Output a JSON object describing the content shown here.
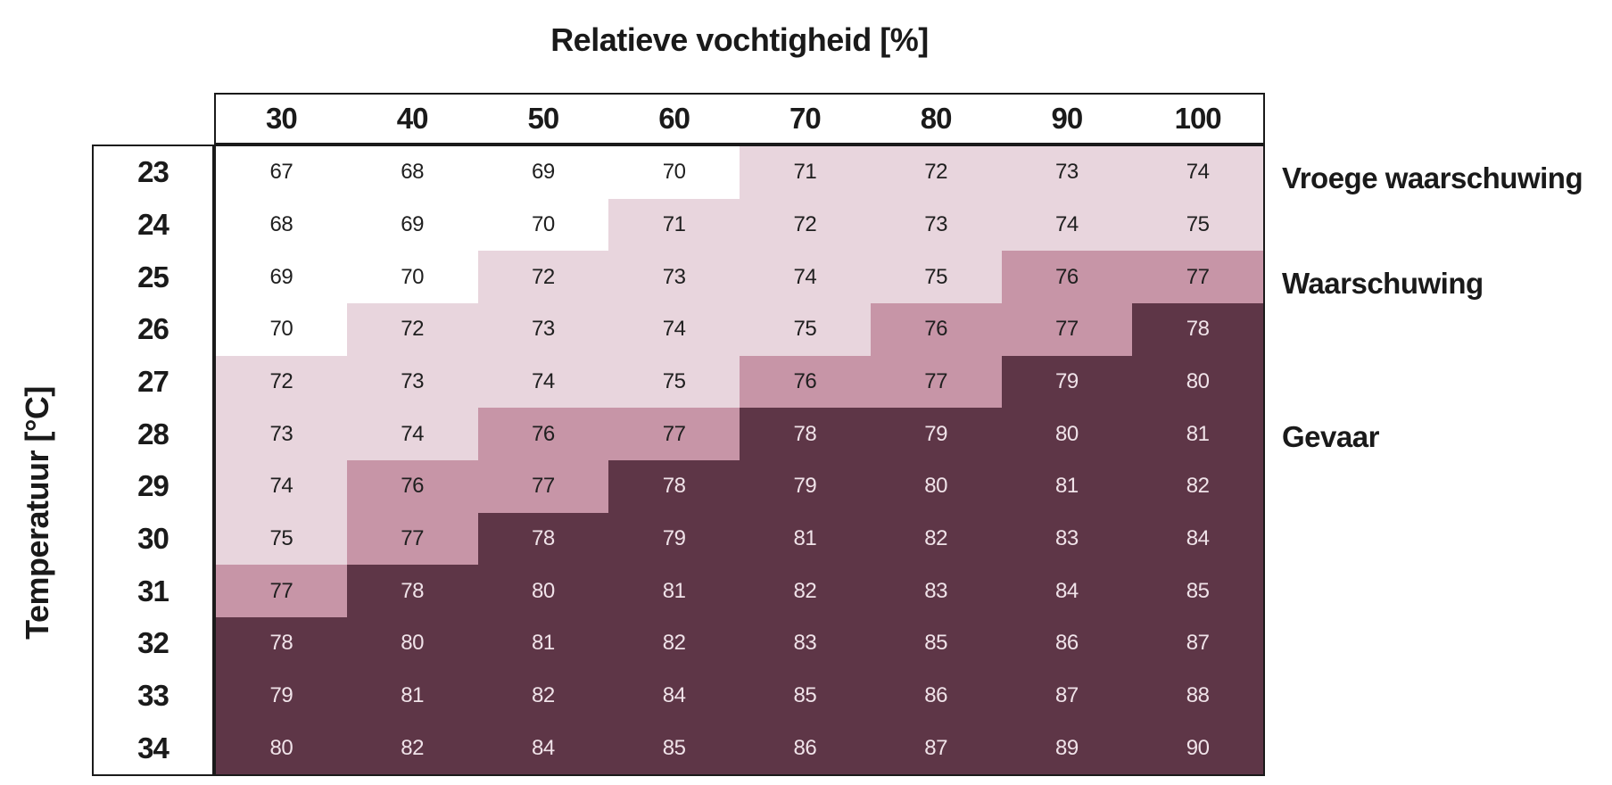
{
  "chart_data": {
    "type": "heatmap",
    "title": "Relatieve vochtigheid [%]",
    "xlabel": "Relatieve vochtigheid [%]",
    "ylabel": "Temperatuur [°C]",
    "columns": [
      "30",
      "40",
      "50",
      "60",
      "70",
      "80",
      "90",
      "100"
    ],
    "rows": [
      "23",
      "24",
      "25",
      "26",
      "27",
      "28",
      "29",
      "30",
      "31",
      "32",
      "33",
      "34"
    ],
    "values": [
      [
        67,
        68,
        69,
        70,
        71,
        72,
        73,
        74
      ],
      [
        68,
        69,
        70,
        71,
        72,
        73,
        74,
        75
      ],
      [
        69,
        70,
        72,
        73,
        74,
        75,
        76,
        77
      ],
      [
        70,
        72,
        73,
        74,
        75,
        76,
        77,
        78
      ],
      [
        72,
        73,
        74,
        75,
        76,
        77,
        79,
        80
      ],
      [
        73,
        74,
        76,
        77,
        78,
        79,
        80,
        81
      ],
      [
        74,
        76,
        77,
        78,
        79,
        80,
        81,
        82
      ],
      [
        75,
        77,
        78,
        79,
        81,
        82,
        83,
        84
      ],
      [
        77,
        78,
        80,
        81,
        82,
        83,
        84,
        85
      ],
      [
        78,
        80,
        81,
        82,
        83,
        85,
        86,
        87
      ],
      [
        79,
        81,
        82,
        84,
        85,
        86,
        87,
        88
      ],
      [
        80,
        82,
        84,
        85,
        86,
        87,
        89,
        90
      ]
    ],
    "levels": [
      {
        "name": "geen",
        "max": 70,
        "color": "#ffffff",
        "text_color": "#1f1f1f"
      },
      {
        "name": "vroege-waarschuwing",
        "max": 75,
        "color": "#e8d5dd",
        "text_color": "#1f1f1f"
      },
      {
        "name": "waarschuwing",
        "max": 77,
        "color": "#c795a7",
        "text_color": "#1f1f1f"
      },
      {
        "name": "gevaar",
        "max": 999,
        "color": "#5e3647",
        "text_color": "#f0e3e9"
      }
    ],
    "legend": [
      {
        "label": "Vroege waarschuwing",
        "level": "vroege-waarschuwing",
        "color": "#e8d5dd"
      },
      {
        "label": "Waarschuwing",
        "level": "waarschuwing",
        "color": "#c795a7"
      },
      {
        "label": "Gevaar",
        "level": "gevaar",
        "color": "#5e3647"
      }
    ],
    "layout": {
      "grid": false,
      "legend_position": "right",
      "row_axis_side": "left",
      "column_axis_side": "top"
    }
  }
}
